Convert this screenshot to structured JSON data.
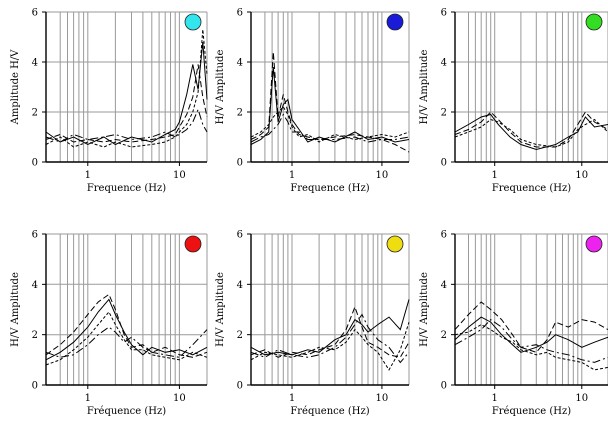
{
  "chart_data": [
    {
      "type": "line",
      "xscale": "log",
      "xlim": [
        0.35,
        20
      ],
      "ylim": [
        0,
        6
      ],
      "x_ticks": [
        1,
        10
      ],
      "y_ticks": [
        0,
        2,
        4,
        6
      ],
      "xlabel": "Frequence (Hz)",
      "ylabel": "Amplitude H/V",
      "marker_color": "#33e6ee",
      "grid": true,
      "series": [
        {
          "x": [
            0.35,
            0.5,
            0.7,
            1,
            1.5,
            2,
            3,
            5,
            7,
            9,
            10,
            12,
            14,
            16,
            18,
            20
          ],
          "y": [
            0.9,
            1.1,
            0.8,
            0.9,
            0.8,
            0.9,
            0.8,
            0.9,
            1.0,
            1.1,
            1.4,
            1.9,
            2.6,
            3.9,
            2.6,
            1.8
          ]
        },
        {
          "x": [
            0.35,
            0.5,
            0.7,
            1,
            1.5,
            2,
            3,
            5,
            7,
            9,
            10,
            12,
            14,
            16,
            18,
            20
          ],
          "y": [
            1.2,
            0.8,
            1.0,
            0.7,
            1.0,
            0.7,
            1.0,
            0.8,
            1.1,
            1.3,
            1.6,
            2.7,
            3.9,
            2.9,
            4.8,
            2.5
          ]
        },
        {
          "x": [
            0.35,
            0.5,
            0.7,
            1,
            1.5,
            2,
            3,
            5,
            7,
            9,
            10,
            12,
            14,
            16,
            18,
            20
          ],
          "y": [
            0.7,
            1.0,
            0.6,
            0.8,
            0.6,
            0.8,
            0.6,
            0.7,
            0.8,
            1.0,
            1.2,
            1.5,
            2.0,
            2.8,
            5.3,
            3.5
          ]
        },
        {
          "x": [
            0.35,
            0.5,
            0.7,
            1,
            1.5,
            2,
            3,
            5,
            7,
            9,
            10,
            12,
            14,
            16,
            18,
            20
          ],
          "y": [
            1.0,
            0.8,
            1.1,
            0.9,
            1.0,
            1.1,
            0.9,
            1.0,
            1.2,
            1.0,
            1.1,
            1.3,
            1.6,
            2.1,
            1.5,
            1.2
          ]
        }
      ]
    },
    {
      "type": "line",
      "xscale": "log",
      "xlim": [
        0.35,
        20
      ],
      "ylim": [
        0,
        6
      ],
      "x_ticks": [
        1,
        10
      ],
      "y_ticks": [
        0,
        2,
        4,
        6
      ],
      "xlabel": "Frequence (Hz)",
      "ylabel": "H/V Amplitude",
      "marker_color": "#1a1ad9",
      "grid": true,
      "series": [
        {
          "x": [
            0.35,
            0.45,
            0.55,
            0.62,
            0.7,
            0.8,
            0.9,
            1.0,
            1.2,
            1.5,
            2,
            3,
            5,
            7,
            10,
            14,
            20
          ],
          "y": [
            0.9,
            1.1,
            1.4,
            4.4,
            1.8,
            2.7,
            2.0,
            1.5,
            1.1,
            1.0,
            0.9,
            1.0,
            1.1,
            1.0,
            0.9,
            0.7,
            0.4
          ]
        },
        {
          "x": [
            0.35,
            0.45,
            0.55,
            0.62,
            0.7,
            0.8,
            0.9,
            1.0,
            1.2,
            1.5,
            2,
            3,
            5,
            7,
            10,
            14,
            20
          ],
          "y": [
            0.7,
            0.9,
            1.2,
            3.8,
            1.6,
            2.3,
            2.5,
            1.7,
            1.3,
            0.8,
            1.0,
            0.8,
            1.2,
            0.9,
            1.0,
            0.8,
            0.9
          ]
        },
        {
          "x": [
            0.35,
            0.45,
            0.55,
            0.62,
            0.7,
            0.8,
            0.9,
            1.0,
            1.2,
            1.5,
            2,
            3,
            5,
            7,
            10,
            14,
            20
          ],
          "y": [
            1.0,
            1.2,
            1.5,
            1.8,
            2.0,
            2.2,
            1.9,
            1.4,
            1.0,
            1.1,
            0.8,
            1.1,
            0.9,
            1.0,
            1.1,
            1.0,
            1.2
          ]
        },
        {
          "x": [
            0.35,
            0.45,
            0.55,
            0.62,
            0.7,
            0.8,
            0.9,
            1.0,
            1.2,
            1.5,
            2,
            3,
            5,
            7,
            10,
            14,
            20
          ],
          "y": [
            0.8,
            1.0,
            1.1,
            1.3,
            1.5,
            1.9,
            1.6,
            1.2,
            1.2,
            0.9,
            0.9,
            0.9,
            1.0,
            0.8,
            0.9,
            0.9,
            1.0
          ]
        }
      ]
    },
    {
      "type": "line",
      "xscale": "log",
      "xlim": [
        0.35,
        20
      ],
      "ylim": [
        0,
        6
      ],
      "x_ticks": [
        1,
        10
      ],
      "y_ticks": [
        0,
        2,
        4,
        6
      ],
      "xlabel": "Frequence (Hz)",
      "ylabel": "H/V Amplitude",
      "marker_color": "#33dd22",
      "grid": true,
      "series": [
        {
          "x": [
            0.35,
            0.5,
            0.7,
            0.9,
            1.1,
            1.5,
            2,
            3,
            5,
            7,
            9,
            11,
            14,
            20
          ],
          "y": [
            1.1,
            1.3,
            1.6,
            2.0,
            1.7,
            1.2,
            0.8,
            0.6,
            0.6,
            0.9,
            1.5,
            2.0,
            1.6,
            1.3
          ]
        },
        {
          "x": [
            0.35,
            0.5,
            0.7,
            0.9,
            1.1,
            1.5,
            2,
            3,
            5,
            7,
            9,
            11,
            14,
            20
          ],
          "y": [
            1.2,
            1.5,
            1.8,
            1.9,
            1.5,
            1.0,
            0.7,
            0.5,
            0.7,
            1.0,
            1.2,
            1.8,
            1.4,
            1.5
          ]
        },
        {
          "x": [
            0.35,
            0.5,
            0.7,
            0.9,
            1.1,
            1.5,
            2,
            3,
            5,
            7,
            9,
            11,
            14,
            20
          ],
          "y": [
            1.0,
            1.2,
            1.4,
            1.7,
            1.6,
            1.3,
            0.9,
            0.7,
            0.6,
            0.8,
            1.3,
            1.5,
            1.7,
            1.2
          ]
        }
      ]
    },
    {
      "type": "line",
      "xscale": "log",
      "xlim": [
        0.35,
        20
      ],
      "ylim": [
        0,
        6
      ],
      "x_ticks": [
        1,
        10
      ],
      "y_ticks": [
        0,
        2,
        4,
        6
      ],
      "xlabel": "Fréquence (Hz)",
      "ylabel": "H/V Amplitude",
      "marker_color": "#ee1111",
      "grid": true,
      "series": [
        {
          "x": [
            0.35,
            0.5,
            0.7,
            1,
            1.3,
            1.7,
            2,
            2.5,
            3,
            4,
            5,
            7,
            10,
            14,
            20
          ],
          "y": [
            1.2,
            1.6,
            2.1,
            2.8,
            3.3,
            3.6,
            3.0,
            2.0,
            1.5,
            1.6,
            1.3,
            1.5,
            1.2,
            1.1,
            1.3
          ]
        },
        {
          "x": [
            0.35,
            0.5,
            0.7,
            1,
            1.3,
            1.7,
            2,
            2.5,
            3,
            4,
            5,
            7,
            10,
            14,
            20
          ],
          "y": [
            1.0,
            1.3,
            1.7,
            2.3,
            2.9,
            3.4,
            2.8,
            2.1,
            1.6,
            1.2,
            1.5,
            1.3,
            1.4,
            1.2,
            1.5
          ]
        },
        {
          "x": [
            0.35,
            0.5,
            0.7,
            1,
            1.3,
            1.7,
            2,
            2.5,
            3,
            4,
            5,
            7,
            10,
            14,
            20
          ],
          "y": [
            0.8,
            1.0,
            1.4,
            1.9,
            2.4,
            2.9,
            2.4,
            1.8,
            1.4,
            1.4,
            1.2,
            1.1,
            1.0,
            1.3,
            1.1
          ]
        },
        {
          "x": [
            0.35,
            0.5,
            0.7,
            1,
            1.3,
            1.7,
            2,
            2.5,
            3,
            4,
            5,
            7,
            10,
            14,
            20
          ],
          "y": [
            1.3,
            1.1,
            1.2,
            1.6,
            2.0,
            2.3,
            2.1,
            1.7,
            1.9,
            1.5,
            1.3,
            1.2,
            1.1,
            1.6,
            2.2
          ]
        }
      ]
    },
    {
      "type": "line",
      "xscale": "log",
      "xlim": [
        0.35,
        20
      ],
      "ylim": [
        0,
        6
      ],
      "x_ticks": [
        1,
        10
      ],
      "y_ticks": [
        0,
        2,
        4,
        6
      ],
      "xlabel": "Fréquence (Hz)",
      "ylabel": "H/V Amplitude",
      "marker_color": "#eedd11",
      "grid": true,
      "series": [
        {
          "x": [
            0.35,
            0.5,
            0.7,
            1,
            1.5,
            2,
            3,
            4,
            5,
            6,
            7,
            9,
            12,
            16,
            20
          ],
          "y": [
            1.2,
            1.4,
            1.1,
            1.3,
            1.2,
            1.4,
            1.6,
            2.2,
            3.1,
            2.3,
            1.7,
            1.5,
            1.2,
            1.1,
            1.7
          ]
        },
        {
          "x": [
            0.35,
            0.5,
            0.7,
            1,
            1.5,
            2,
            3,
            4,
            5,
            6,
            7,
            9,
            12,
            16,
            20
          ],
          "y": [
            1.5,
            1.2,
            1.3,
            1.2,
            1.4,
            1.3,
            1.8,
            2.0,
            2.6,
            2.4,
            2.1,
            2.4,
            2.7,
            2.2,
            3.4
          ]
        },
        {
          "x": [
            0.35,
            0.5,
            0.7,
            1,
            1.5,
            2,
            3,
            4,
            5,
            6,
            7,
            9,
            12,
            16,
            20
          ],
          "y": [
            1.0,
            1.3,
            1.2,
            1.1,
            1.3,
            1.5,
            1.4,
            1.7,
            2.2,
            1.9,
            1.6,
            1.3,
            0.6,
            1.4,
            2.5
          ]
        },
        {
          "x": [
            0.35,
            0.5,
            0.7,
            1,
            1.5,
            2,
            3,
            4,
            5,
            6,
            7,
            9,
            12,
            16,
            20
          ],
          "y": [
            1.3,
            1.1,
            1.4,
            1.2,
            1.1,
            1.2,
            1.5,
            1.9,
            2.4,
            2.8,
            2.3,
            1.8,
            1.5,
            0.9,
            1.3
          ]
        }
      ]
    },
    {
      "type": "line",
      "xscale": "log",
      "xlim": [
        0.35,
        20
      ],
      "ylim": [
        0,
        6
      ],
      "x_ticks": [
        1,
        10
      ],
      "y_ticks": [
        0,
        2,
        4,
        6
      ],
      "xlabel": "Fréquence (Hz)",
      "ylabel": "H/V Amplitude",
      "marker_color": "#ee22ee",
      "grid": true,
      "series": [
        {
          "x": [
            0.35,
            0.5,
            0.7,
            0.9,
            1.2,
            1.6,
            2,
            3,
            4,
            5,
            7,
            10,
            14,
            20
          ],
          "y": [
            2.2,
            2.8,
            3.3,
            3.0,
            2.6,
            2.0,
            1.5,
            1.3,
            1.8,
            2.5,
            2.3,
            2.6,
            2.5,
            2.2
          ]
        },
        {
          "x": [
            0.35,
            0.5,
            0.7,
            0.9,
            1.2,
            1.6,
            2,
            3,
            4,
            5,
            7,
            10,
            14,
            20
          ],
          "y": [
            1.8,
            2.3,
            2.7,
            2.5,
            2.0,
            1.6,
            1.3,
            1.5,
            1.7,
            2.0,
            1.8,
            1.5,
            1.7,
            1.9
          ]
        },
        {
          "x": [
            0.35,
            0.5,
            0.7,
            0.9,
            1.2,
            1.6,
            2,
            3,
            4,
            5,
            7,
            10,
            14,
            20
          ],
          "y": [
            2.0,
            2.1,
            2.4,
            2.2,
            1.9,
            1.7,
            1.4,
            1.2,
            1.3,
            1.1,
            1.0,
            0.9,
            0.6,
            0.7
          ]
        },
        {
          "x": [
            0.35,
            0.5,
            0.7,
            0.9,
            1.2,
            1.6,
            2,
            3,
            4,
            5,
            7,
            10,
            14,
            20
          ],
          "y": [
            1.6,
            1.9,
            2.2,
            2.6,
            2.3,
            1.8,
            1.5,
            1.6,
            1.4,
            1.3,
            1.2,
            1.0,
            0.9,
            1.1
          ]
        }
      ]
    }
  ]
}
